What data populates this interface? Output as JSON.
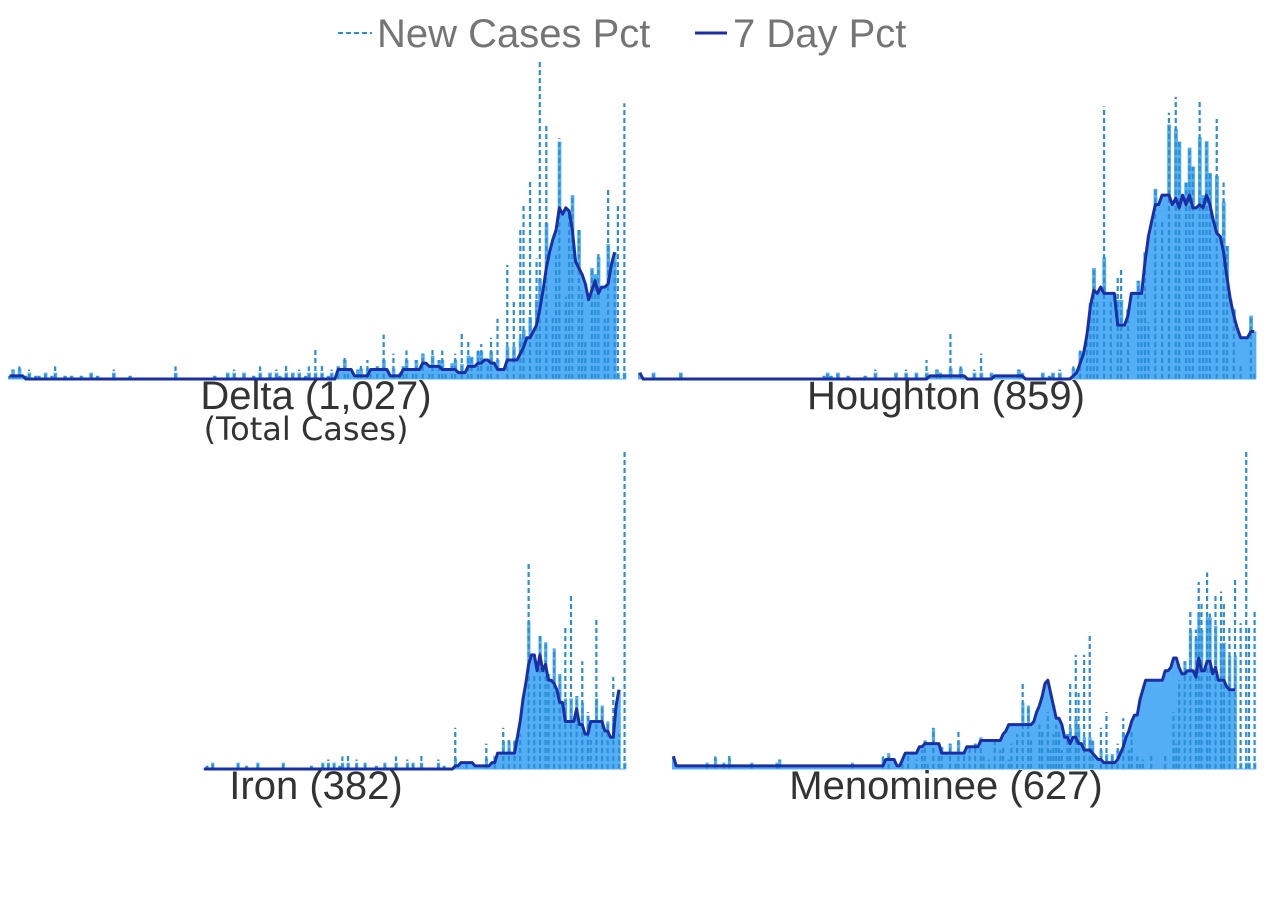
{
  "colors": {
    "bars": "#54aef5",
    "dashed": "#2b8fd6",
    "seven_day": "#1a2ea6",
    "legend_text": "#757575",
    "title_text": "#333333"
  },
  "legend": {
    "new_cases_label": "New Cases Pct",
    "seven_day_label": "7 Day Pct"
  },
  "chart_data": [
    {
      "type": "bar",
      "title": "Delta (1,027)",
      "subtitle": "(Total Cases)",
      "ylim": [
        0,
        100
      ],
      "data_start": 0.0,
      "daily": [
        1,
        3,
        1,
        4,
        0,
        1,
        3,
        0,
        1,
        1,
        0,
        2,
        0,
        1,
        4,
        0,
        0,
        1,
        0,
        1,
        0,
        0,
        1,
        0,
        0,
        2,
        0,
        1,
        0,
        0,
        0,
        0,
        3,
        0,
        0,
        0,
        0,
        1,
        0,
        0,
        0,
        0,
        0,
        0,
        0,
        0,
        0,
        0,
        0,
        0,
        0,
        4,
        0,
        0,
        0,
        0,
        0,
        0,
        0,
        0,
        0,
        0,
        0,
        1,
        0,
        0,
        0,
        2,
        0,
        3,
        0,
        0,
        2,
        0,
        0,
        1,
        0,
        4,
        0,
        0,
        2,
        0,
        3,
        1,
        0,
        5,
        0,
        2,
        0,
        3,
        0,
        1,
        4,
        0,
        10,
        0,
        5,
        0,
        1,
        3,
        0,
        4,
        0,
        7,
        2,
        0,
        0,
        3,
        5,
        0,
        6,
        2,
        0,
        4,
        0,
        14,
        0,
        0,
        8,
        0,
        2,
        4,
        9,
        0,
        3,
        6,
        0,
        8,
        0,
        2,
        10,
        0,
        6,
        9,
        3,
        0,
        5,
        8,
        0,
        15,
        0,
        12,
        7,
        0,
        9,
        11,
        0,
        5,
        13,
        0,
        19,
        0,
        0,
        36,
        0,
        25,
        0,
        48,
        55,
        0,
        63,
        0,
        38,
        100,
        0,
        80,
        0,
        20,
        39,
        76,
        0,
        26,
        52,
        58,
        0,
        47,
        28,
        12,
        0,
        35,
        33,
        40,
        0,
        19,
        60,
        0,
        37,
        55,
        0,
        87
      ],
      "seven_day": [
        1,
        1,
        1,
        1,
        1,
        0,
        0,
        0,
        0,
        0,
        0,
        0,
        0,
        0,
        0,
        0,
        0,
        0,
        0,
        0,
        0,
        0,
        0,
        0,
        0,
        0,
        0,
        0,
        0,
        0,
        0,
        0,
        0,
        0,
        0,
        0,
        0,
        0,
        0,
        0,
        0,
        0,
        0,
        0,
        0,
        0,
        0,
        0,
        0,
        0,
        0,
        0,
        0,
        0,
        0,
        0,
        0,
        0,
        0,
        0,
        0,
        0,
        0,
        0,
        0,
        0,
        0,
        0,
        0,
        0,
        0,
        0,
        0,
        0,
        0,
        0,
        0,
        0,
        0,
        0,
        0,
        0,
        0,
        0,
        0,
        0,
        0,
        0,
        0,
        0,
        0,
        0,
        0,
        0,
        0,
        0,
        0,
        0,
        0,
        0,
        0,
        3,
        3,
        3,
        3,
        3,
        1,
        1,
        1,
        1,
        1,
        3,
        3,
        3,
        3,
        3,
        3,
        1,
        1,
        1,
        1,
        3,
        3,
        3,
        3,
        3,
        3,
        5,
        5,
        4,
        4,
        4,
        4,
        3,
        3,
        3,
        3,
        3,
        2,
        2,
        2,
        4,
        4,
        4,
        5,
        5,
        6,
        6,
        5,
        5,
        3,
        3,
        3,
        6,
        6,
        6,
        6,
        8,
        10,
        13,
        13,
        15,
        17,
        22,
        28,
        35,
        40,
        44,
        47,
        54,
        52,
        54,
        53,
        47,
        37,
        35,
        33,
        30,
        25,
        28,
        31,
        27,
        29,
        29,
        30,
        36,
        40
      ],
      "totals_hint": ""
    },
    {
      "type": "bar",
      "title": "Houghton (859)",
      "subtitle": "",
      "ylim": [
        0,
        100
      ],
      "data_start": 0.0,
      "daily": [
        0,
        0,
        0,
        0,
        2,
        0,
        0,
        0,
        0,
        0,
        0,
        0,
        2,
        0,
        0,
        0,
        0,
        0,
        0,
        0,
        0,
        0,
        0,
        0,
        0,
        0,
        0,
        0,
        0,
        0,
        0,
        0,
        0,
        0,
        0,
        0,
        0,
        0,
        0,
        0,
        0,
        0,
        0,
        0,
        0,
        0,
        0,
        0,
        0,
        0,
        0,
        0,
        0,
        0,
        1,
        2,
        1,
        0,
        2,
        0,
        0,
        1,
        0,
        0,
        0,
        0,
        1,
        0,
        0,
        3,
        0,
        0,
        0,
        0,
        0,
        2,
        0,
        0,
        3,
        0,
        0,
        2,
        0,
        0,
        6,
        0,
        0,
        3,
        2,
        0,
        0,
        15,
        0,
        0,
        4,
        0,
        0,
        0,
        3,
        0,
        8,
        0,
        0,
        2,
        0,
        0,
        0,
        0,
        0,
        0,
        0,
        3,
        2,
        0,
        0,
        0,
        0,
        0,
        2,
        0,
        1,
        2,
        0,
        3,
        0,
        0,
        0,
        4,
        0,
        9,
        0,
        14,
        24,
        35,
        25,
        0,
        86,
        0,
        25,
        0,
        32,
        35,
        0,
        22,
        0,
        0,
        31,
        25,
        40,
        18,
        0,
        60,
        0,
        50,
        0,
        84,
        0,
        89,
        75,
        0,
        62,
        73,
        67,
        0,
        88,
        58,
        75,
        65,
        0,
        82,
        0,
        62,
        42,
        0,
        22,
        0,
        5,
        0,
        0,
        20,
        2
      ],
      "seven_day": [
        2,
        0,
        0,
        0,
        0,
        0,
        0,
        0,
        0,
        0,
        0,
        0,
        0,
        0,
        0,
        0,
        0,
        0,
        0,
        0,
        0,
        0,
        0,
        0,
        0,
        0,
        0,
        0,
        0,
        0,
        0,
        0,
        0,
        0,
        0,
        0,
        0,
        0,
        0,
        0,
        0,
        0,
        0,
        0,
        0,
        0,
        0,
        0,
        0,
        0,
        0,
        0,
        0,
        0,
        0,
        0,
        0,
        0,
        0,
        0,
        0,
        0,
        0,
        0,
        0,
        0,
        0,
        0,
        0,
        0,
        0,
        0,
        0,
        0,
        0,
        0,
        0,
        0,
        0,
        0,
        0,
        0,
        0,
        0,
        0,
        1,
        1,
        1,
        1,
        1,
        1,
        1,
        1,
        1,
        1,
        1,
        0,
        0,
        0,
        0,
        0,
        0,
        0,
        0,
        1,
        1,
        1,
        1,
        1,
        1,
        1,
        1,
        1,
        0,
        0,
        0,
        0,
        0,
        0,
        0,
        0,
        0,
        0,
        0,
        0,
        0,
        0,
        1,
        2,
        5,
        8,
        14,
        23,
        28,
        27,
        29,
        27,
        27,
        27,
        27,
        17,
        17,
        17,
        20,
        27,
        27,
        27,
        27,
        37,
        45,
        50,
        55,
        55,
        58,
        58,
        58,
        55,
        57,
        54,
        58,
        55,
        58,
        54,
        54,
        55,
        54,
        58,
        55,
        50,
        46,
        45,
        40,
        32,
        25,
        20,
        16,
        13,
        13,
        13,
        15,
        15
      ],
      "totals_hint": ""
    },
    {
      "type": "bar",
      "title": "Iron (382)",
      "subtitle": "",
      "ylim": [
        0,
        100
      ],
      "data_start": 0.315,
      "daily": [
        0,
        1,
        0,
        2,
        0,
        0,
        0,
        0,
        0,
        0,
        0,
        0,
        2,
        0,
        0,
        1,
        0,
        0,
        0,
        2,
        0,
        0,
        0,
        0,
        0,
        0,
        0,
        0,
        2,
        0,
        0,
        0,
        0,
        0,
        0,
        0,
        0,
        0,
        1,
        0,
        0,
        0,
        2,
        0,
        3,
        0,
        2,
        0,
        1,
        4,
        0,
        5,
        0,
        0,
        3,
        0,
        0,
        2,
        0,
        0,
        0,
        1,
        0,
        0,
        2,
        0,
        0,
        0,
        4,
        0,
        0,
        0,
        3,
        0,
        2,
        0,
        0,
        5,
        0,
        0,
        0,
        0,
        0,
        3,
        0,
        1,
        0,
        0,
        0,
        13,
        0,
        0,
        0,
        2,
        0,
        0,
        0,
        0,
        0,
        0,
        8,
        0,
        0,
        4,
        0,
        0,
        13,
        0,
        10,
        0,
        9,
        0,
        11,
        0,
        0,
        65,
        0,
        30,
        0,
        42,
        0,
        40,
        30,
        0,
        38,
        0,
        30,
        0,
        45,
        0,
        55,
        0,
        23,
        0,
        34,
        0,
        18,
        10,
        0,
        48,
        0,
        20,
        0,
        15,
        0,
        29,
        0,
        11,
        0,
        100
      ],
      "seven_day": [
        0,
        0,
        0,
        0,
        0,
        0,
        0,
        0,
        0,
        0,
        0,
        0,
        0,
        0,
        0,
        0,
        0,
        0,
        0,
        0,
        0,
        0,
        0,
        0,
        0,
        0,
        0,
        0,
        0,
        0,
        0,
        0,
        0,
        0,
        0,
        0,
        0,
        0,
        0,
        0,
        0,
        0,
        0,
        0,
        0,
        0,
        0,
        0,
        0,
        0,
        0,
        0,
        0,
        0,
        0,
        0,
        0,
        0,
        0,
        0,
        0,
        0,
        0,
        0,
        0,
        0,
        0,
        0,
        0,
        0,
        0,
        0,
        0,
        0,
        0,
        0,
        0,
        0,
        0,
        0,
        0,
        0,
        0,
        0,
        0,
        0,
        0,
        0,
        0,
        1,
        1,
        2,
        2,
        2,
        2,
        2,
        1,
        1,
        1,
        1,
        1,
        1,
        2,
        2,
        5,
        5,
        5,
        5,
        5,
        5,
        5,
        10,
        15,
        22,
        27,
        33,
        36,
        36,
        31,
        36,
        31,
        33,
        28,
        28,
        27,
        25,
        21,
        21,
        15,
        15,
        15,
        15,
        19,
        14,
        14,
        11,
        11,
        15,
        15,
        15,
        15,
        15,
        12,
        12,
        10,
        10,
        20,
        25
      ],
      "totals_hint": ""
    },
    {
      "type": "bar",
      "title": "Menominee (627)",
      "subtitle": "",
      "ylim": [
        0,
        100
      ],
      "data_start": 0.055,
      "daily": [
        0,
        0,
        0,
        0,
        0,
        0,
        0,
        0,
        0,
        0,
        0,
        0,
        2,
        0,
        0,
        4,
        0,
        0,
        2,
        0,
        5,
        0,
        0,
        0,
        0,
        0,
        0,
        0,
        2,
        0,
        0,
        0,
        0,
        0,
        0,
        0,
        0,
        2,
        3,
        0,
        0,
        0,
        0,
        0,
        0,
        0,
        0,
        0,
        0,
        0,
        0,
        0,
        0,
        0,
        0,
        0,
        0,
        0,
        0,
        0,
        0,
        0,
        0,
        0,
        2,
        0,
        0,
        0,
        0,
        0,
        0,
        0,
        0,
        0,
        0,
        4,
        0,
        5,
        0,
        0,
        0,
        0,
        2,
        0,
        5,
        0,
        0,
        3,
        0,
        6,
        9,
        2,
        0,
        13,
        0,
        5,
        7,
        0,
        0,
        8,
        0,
        2,
        12,
        0,
        5,
        0,
        7,
        0,
        8,
        0,
        10,
        4,
        0,
        3,
        0,
        9,
        0,
        6,
        7,
        0,
        3,
        8,
        0,
        11,
        0,
        27,
        0,
        20,
        9,
        0,
        0,
        14,
        12,
        0,
        18,
        6,
        11,
        14,
        12,
        6,
        0,
        11,
        27,
        0,
        36,
        24,
        0,
        36,
        0,
        43,
        9,
        0,
        0,
        13,
        0,
        18,
        0,
        5,
        0,
        8,
        0,
        16,
        0,
        6,
        12,
        0,
        4,
        2,
        3,
        0,
        0,
        5,
        0,
        0,
        0,
        0,
        5,
        0,
        0,
        18,
        8,
        28,
        0,
        34,
        0,
        50,
        0,
        44,
        59,
        53,
        0,
        62,
        49,
        0,
        55,
        0,
        56,
        52,
        0,
        45,
        0,
        60,
        0,
        46,
        0,
        100,
        45,
        0,
        50
      ],
      "seven_day": [
        4,
        1,
        1,
        1,
        1,
        1,
        1,
        1,
        1,
        1,
        1,
        1,
        1,
        1,
        1,
        1,
        1,
        1,
        1,
        1,
        1,
        1,
        1,
        1,
        1,
        1,
        1,
        1,
        1,
        1,
        1,
        1,
        1,
        1,
        1,
        1,
        1,
        1,
        1,
        1,
        1,
        1,
        1,
        1,
        1,
        1,
        1,
        1,
        1,
        1,
        1,
        1,
        1,
        1,
        1,
        1,
        1,
        1,
        1,
        1,
        1,
        1,
        1,
        1,
        1,
        1,
        1,
        1,
        1,
        1,
        1,
        1,
        1,
        1,
        1,
        1,
        3,
        3,
        3,
        3,
        1,
        1,
        3,
        5,
        5,
        5,
        5,
        5,
        7,
        7,
        8,
        8,
        8,
        8,
        8,
        8,
        5,
        5,
        5,
        5,
        5,
        5,
        5,
        5,
        5,
        7,
        7,
        7,
        7,
        7,
        9,
        9,
        9,
        9,
        9,
        9,
        9,
        9,
        11,
        12,
        14,
        14,
        14,
        14,
        14,
        14,
        14,
        14,
        14,
        15,
        18,
        20,
        23,
        27,
        28,
        24,
        20,
        16,
        16,
        14,
        10,
        10,
        8,
        10,
        10,
        8,
        8,
        6,
        6,
        6,
        5,
        4,
        3,
        3,
        2,
        2,
        2,
        2,
        2,
        3,
        5,
        7,
        10,
        12,
        15,
        17,
        17,
        22,
        25,
        28,
        28,
        28,
        28,
        28,
        28,
        28,
        31,
        31,
        32,
        35,
        35,
        32,
        30,
        30,
        31,
        31,
        31,
        29,
        35,
        31,
        31,
        34,
        34,
        30,
        32,
        28,
        28,
        28,
        26,
        25,
        25,
        25
      ],
      "totals_hint": ""
    }
  ]
}
